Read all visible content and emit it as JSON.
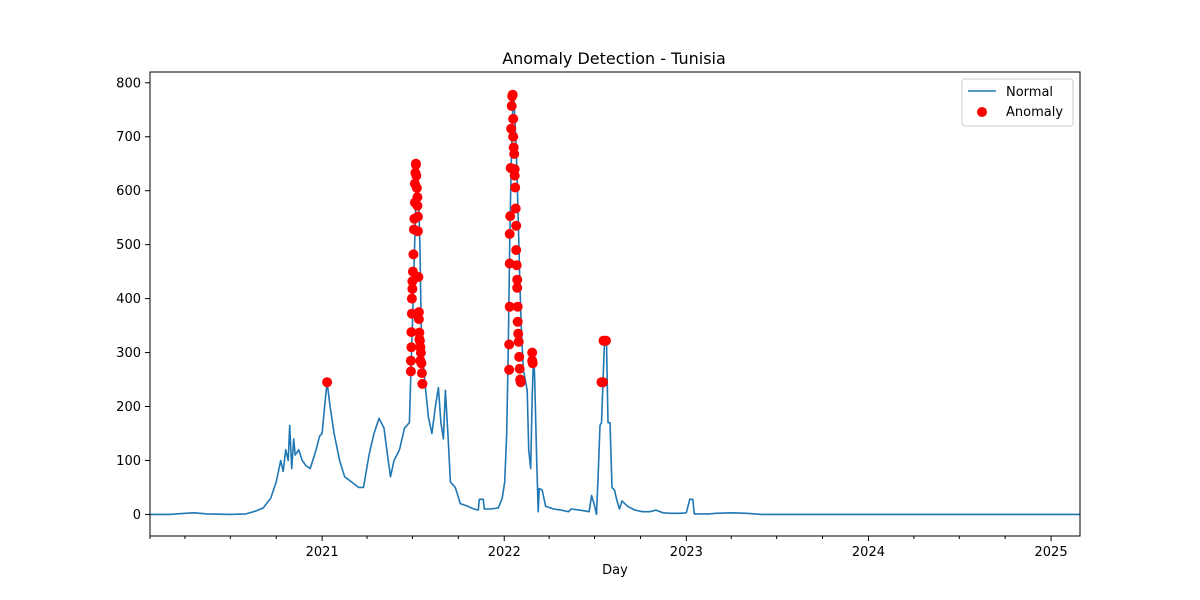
{
  "chart_data": {
    "type": "line",
    "title": "Anomaly Detection - Tunisia",
    "xlabel": "Day",
    "ylabel": "",
    "x_range": [
      "2020-01-22",
      "2025-02-28"
    ],
    "ylim": [
      -40,
      820
    ],
    "x_ticks": [
      {
        "date": "2021-01-01",
        "label": "2021"
      },
      {
        "date": "2022-01-01",
        "label": "2022"
      },
      {
        "date": "2023-01-01",
        "label": "2023"
      },
      {
        "date": "2024-01-01",
        "label": "2024"
      },
      {
        "date": "2025-01-01",
        "label": "2025"
      }
    ],
    "y_ticks": [
      0,
      100,
      200,
      300,
      400,
      500,
      600,
      700,
      800
    ],
    "legend": {
      "position": "top-right",
      "entries": [
        "Normal",
        "Anomaly"
      ]
    },
    "grid": false,
    "series": [
      {
        "name": "Normal",
        "kind": "line",
        "color": "#1f77b4",
        "points": [
          [
            "2020-01-22",
            0
          ],
          [
            "2020-03-01",
            0
          ],
          [
            "2020-04-01",
            2
          ],
          [
            "2020-04-20",
            3
          ],
          [
            "2020-05-15",
            1
          ],
          [
            "2020-07-01",
            0
          ],
          [
            "2020-08-01",
            1
          ],
          [
            "2020-08-20",
            6
          ],
          [
            "2020-09-05",
            12
          ],
          [
            "2020-09-20",
            30
          ],
          [
            "2020-10-01",
            60
          ],
          [
            "2020-10-10",
            100
          ],
          [
            "2020-10-15",
            80
          ],
          [
            "2020-10-20",
            120
          ],
          [
            "2020-10-25",
            100
          ],
          [
            "2020-10-28",
            165
          ],
          [
            "2020-11-01",
            85
          ],
          [
            "2020-11-05",
            140
          ],
          [
            "2020-11-08",
            110
          ],
          [
            "2020-11-15",
            120
          ],
          [
            "2020-11-22",
            100
          ],
          [
            "2020-11-30",
            90
          ],
          [
            "2020-12-08",
            85
          ],
          [
            "2020-12-20",
            120
          ],
          [
            "2020-12-27",
            145
          ],
          [
            "2021-01-01",
            150
          ],
          [
            "2021-01-06",
            200
          ],
          [
            "2021-01-11",
            245
          ],
          [
            "2021-01-17",
            200
          ],
          [
            "2021-01-25",
            150
          ],
          [
            "2021-02-05",
            100
          ],
          [
            "2021-02-15",
            70
          ],
          [
            "2021-03-01",
            60
          ],
          [
            "2021-03-15",
            50
          ],
          [
            "2021-03-25",
            50
          ],
          [
            "2021-04-05",
            110
          ],
          [
            "2021-04-15",
            150
          ],
          [
            "2021-04-25",
            178
          ],
          [
            "2021-05-05",
            160
          ],
          [
            "2021-05-12",
            110
          ],
          [
            "2021-05-18",
            70
          ],
          [
            "2021-05-25",
            100
          ],
          [
            "2021-06-05",
            120
          ],
          [
            "2021-06-15",
            160
          ],
          [
            "2021-06-25",
            170
          ],
          [
            "2021-06-28",
            265
          ],
          [
            "2021-07-01",
            350
          ],
          [
            "2021-07-04",
            450
          ],
          [
            "2021-07-07",
            550
          ],
          [
            "2021-07-09",
            640
          ],
          [
            "2021-07-11",
            650
          ],
          [
            "2021-07-13",
            600
          ],
          [
            "2021-07-16",
            500
          ],
          [
            "2021-07-19",
            330
          ],
          [
            "2021-07-23",
            280
          ],
          [
            "2021-07-26",
            245
          ],
          [
            "2021-08-02",
            180
          ],
          [
            "2021-08-09",
            150
          ],
          [
            "2021-08-16",
            200
          ],
          [
            "2021-08-22",
            235
          ],
          [
            "2021-08-27",
            170
          ],
          [
            "2021-09-01",
            140
          ],
          [
            "2021-09-05",
            230
          ],
          [
            "2021-09-10",
            150
          ],
          [
            "2021-09-15",
            60
          ],
          [
            "2021-09-25",
            50
          ],
          [
            "2021-10-05",
            20
          ],
          [
            "2021-10-20",
            15
          ],
          [
            "2021-11-01",
            10
          ],
          [
            "2021-11-10",
            8
          ],
          [
            "2021-11-12",
            28
          ],
          [
            "2021-11-20",
            28
          ],
          [
            "2021-11-22",
            10
          ],
          [
            "2021-12-05",
            10
          ],
          [
            "2021-12-20",
            12
          ],
          [
            "2021-12-28",
            30
          ],
          [
            "2022-01-02",
            60
          ],
          [
            "2022-01-06",
            150
          ],
          [
            "2022-01-09",
            300
          ],
          [
            "2022-01-12",
            500
          ],
          [
            "2022-01-15",
            650
          ],
          [
            "2022-01-18",
            750
          ],
          [
            "2022-01-20",
            778
          ],
          [
            "2022-01-23",
            720
          ],
          [
            "2022-01-26",
            650
          ],
          [
            "2022-01-29",
            550
          ],
          [
            "2022-02-01",
            440
          ],
          [
            "2022-02-04",
            350
          ],
          [
            "2022-02-08",
            270
          ],
          [
            "2022-02-12",
            250
          ],
          [
            "2022-02-16",
            230
          ],
          [
            "2022-02-19",
            120
          ],
          [
            "2022-02-23",
            85
          ],
          [
            "2022-02-26",
            220
          ],
          [
            "2022-03-01",
            300
          ],
          [
            "2022-03-03",
            250
          ],
          [
            "2022-03-07",
            100
          ],
          [
            "2022-03-10",
            5
          ],
          [
            "2022-03-12",
            48
          ],
          [
            "2022-03-18",
            45
          ],
          [
            "2022-03-25",
            15
          ],
          [
            "2022-04-10",
            10
          ],
          [
            "2022-04-25",
            8
          ],
          [
            "2022-05-10",
            5
          ],
          [
            "2022-05-15",
            10
          ],
          [
            "2022-06-01",
            8
          ],
          [
            "2022-06-20",
            5
          ],
          [
            "2022-06-25",
            35
          ],
          [
            "2022-06-30",
            20
          ],
          [
            "2022-07-05",
            0
          ],
          [
            "2022-07-08",
            65
          ],
          [
            "2022-07-12",
            165
          ],
          [
            "2022-07-15",
            170
          ],
          [
            "2022-07-18",
            245
          ],
          [
            "2022-07-21",
            320
          ],
          [
            "2022-07-25",
            320
          ],
          [
            "2022-07-28",
            170
          ],
          [
            "2022-08-01",
            170
          ],
          [
            "2022-08-05",
            50
          ],
          [
            "2022-08-10",
            45
          ],
          [
            "2022-08-15",
            25
          ],
          [
            "2022-08-20",
            10
          ],
          [
            "2022-08-25",
            25
          ],
          [
            "2022-09-05",
            15
          ],
          [
            "2022-09-20",
            8
          ],
          [
            "2022-10-05",
            5
          ],
          [
            "2022-10-20",
            5
          ],
          [
            "2022-11-01",
            8
          ],
          [
            "2022-11-15",
            3
          ],
          [
            "2022-12-01",
            2
          ],
          [
            "2022-12-20",
            2
          ],
          [
            "2023-01-01",
            3
          ],
          [
            "2023-01-08",
            28
          ],
          [
            "2023-01-14",
            28
          ],
          [
            "2023-01-17",
            1
          ],
          [
            "2023-02-15",
            1
          ],
          [
            "2023-03-01",
            2
          ],
          [
            "2023-04-01",
            3
          ],
          [
            "2023-05-01",
            2
          ],
          [
            "2023-06-01",
            0
          ],
          [
            "2024-01-01",
            0
          ],
          [
            "2025-01-01",
            0
          ],
          [
            "2025-02-28",
            0
          ]
        ]
      },
      {
        "name": "Anomaly",
        "kind": "scatter",
        "color": "#ff0000",
        "points": [
          [
            "2021-01-11",
            245
          ],
          [
            "2021-06-28",
            265
          ],
          [
            "2021-06-28",
            285
          ],
          [
            "2021-06-29",
            310
          ],
          [
            "2021-06-29",
            338
          ],
          [
            "2021-06-30",
            372
          ],
          [
            "2021-06-30",
            400
          ],
          [
            "2021-07-01",
            418
          ],
          [
            "2021-07-01",
            432
          ],
          [
            "2021-07-02",
            450
          ],
          [
            "2021-07-03",
            482
          ],
          [
            "2021-07-04",
            528
          ],
          [
            "2021-07-05",
            548
          ],
          [
            "2021-07-06",
            578
          ],
          [
            "2021-07-06",
            613
          ],
          [
            "2021-07-07",
            633
          ],
          [
            "2021-07-08",
            648
          ],
          [
            "2021-07-08",
            650
          ],
          [
            "2021-07-09",
            628
          ],
          [
            "2021-07-10",
            605
          ],
          [
            "2021-07-11",
            588
          ],
          [
            "2021-07-11",
            572
          ],
          [
            "2021-07-12",
            552
          ],
          [
            "2021-07-12",
            525
          ],
          [
            "2021-07-13",
            440
          ],
          [
            "2021-07-14",
            375
          ],
          [
            "2021-07-14",
            362
          ],
          [
            "2021-07-15",
            337
          ],
          [
            "2021-07-15",
            325
          ],
          [
            "2021-07-16",
            322
          ],
          [
            "2021-07-17",
            310
          ],
          [
            "2021-07-18",
            300
          ],
          [
            "2021-07-17",
            285
          ],
          [
            "2021-07-19",
            280
          ],
          [
            "2021-07-20",
            262
          ],
          [
            "2021-07-21",
            242
          ],
          [
            "2022-01-11",
            268
          ],
          [
            "2022-01-11",
            315
          ],
          [
            "2022-01-12",
            385
          ],
          [
            "2022-01-12",
            465
          ],
          [
            "2022-01-12",
            520
          ],
          [
            "2022-01-13",
            553
          ],
          [
            "2022-01-14",
            642
          ],
          [
            "2022-01-15",
            715
          ],
          [
            "2022-01-16",
            757
          ],
          [
            "2022-01-17",
            775
          ],
          [
            "2022-01-18",
            778
          ],
          [
            "2022-01-19",
            733
          ],
          [
            "2022-01-19",
            700
          ],
          [
            "2022-01-20",
            680
          ],
          [
            "2022-01-21",
            668
          ],
          [
            "2022-01-22",
            640
          ],
          [
            "2022-01-22",
            628
          ],
          [
            "2022-01-23",
            606
          ],
          [
            "2022-01-24",
            567
          ],
          [
            "2022-01-25",
            535
          ],
          [
            "2022-01-25",
            490
          ],
          [
            "2022-01-26",
            462
          ],
          [
            "2022-01-27",
            435
          ],
          [
            "2022-01-27",
            420
          ],
          [
            "2022-01-28",
            385
          ],
          [
            "2022-01-28",
            357
          ],
          [
            "2022-01-29",
            335
          ],
          [
            "2022-01-30",
            320
          ],
          [
            "2022-01-31",
            292
          ],
          [
            "2022-02-01",
            270
          ],
          [
            "2022-02-02",
            250
          ],
          [
            "2022-02-03",
            245
          ],
          [
            "2022-02-26",
            300
          ],
          [
            "2022-02-26",
            285
          ],
          [
            "2022-02-27",
            280
          ],
          [
            "2022-07-15",
            245
          ],
          [
            "2022-07-18",
            245
          ],
          [
            "2022-07-19",
            322
          ],
          [
            "2022-07-22",
            322
          ],
          [
            "2022-07-24",
            322
          ]
        ]
      }
    ]
  }
}
